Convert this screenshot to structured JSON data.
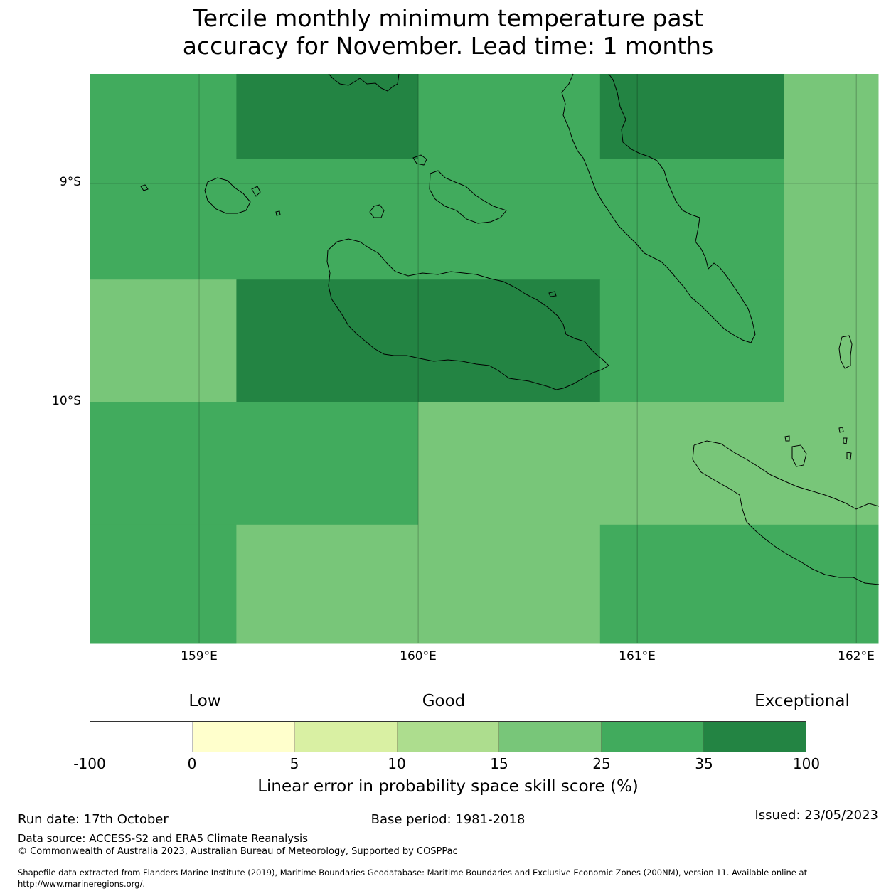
{
  "title": {
    "line1": "Tercile monthly minimum temperature past",
    "line2": "accuracy for November. Lead time: 1 months"
  },
  "map": {
    "lat_labels": [
      "9°S",
      "10°S"
    ],
    "lon_labels": [
      "159°E",
      "160°E",
      "161°E",
      "162°E"
    ],
    "extent": {
      "lon_min": 158.5,
      "lon_max": 162.1,
      "lat_top": -8.5,
      "lat_bottom": -11.1
    },
    "cell_rows": [
      {
        "lat_from": -8.5,
        "lat_to": -8.89,
        "cells": [
          [
            158.5,
            159.17,
            25
          ],
          [
            159.17,
            160.0,
            35
          ],
          [
            160.0,
            160.83,
            25
          ],
          [
            160.83,
            161.67,
            35
          ],
          [
            161.67,
            162.1,
            15
          ]
        ]
      },
      {
        "lat_from": -8.89,
        "lat_to": -9.44,
        "cells": [
          [
            158.5,
            161.67,
            25
          ],
          [
            161.67,
            162.1,
            15
          ]
        ]
      },
      {
        "lat_from": -9.44,
        "lat_to": -10.0,
        "cells": [
          [
            158.5,
            159.17,
            15
          ],
          [
            159.17,
            160.83,
            35
          ],
          [
            160.83,
            161.67,
            25
          ],
          [
            161.67,
            162.1,
            15
          ]
        ]
      },
      {
        "lat_from": -10.0,
        "lat_to": -10.56,
        "cells": [
          [
            158.5,
            160.0,
            25
          ],
          [
            160.0,
            162.1,
            15
          ]
        ]
      },
      {
        "lat_from": -10.56,
        "lat_to": -11.1,
        "cells": [
          [
            158.5,
            159.17,
            25
          ],
          [
            159.17,
            160.83,
            15
          ],
          [
            160.83,
            162.1,
            25
          ]
        ]
      }
    ]
  },
  "colorbar": {
    "words": [
      "Low",
      "Good",
      "Exceptional"
    ],
    "ticks": [
      "-100",
      "0",
      "5",
      "10",
      "15",
      "25",
      "35",
      "100"
    ],
    "colors": [
      "#ffffff",
      "#ffffcc",
      "#d9f0a3",
      "#addd8e",
      "#78c679",
      "#41ab5d",
      "#238443"
    ],
    "label": "Linear error in probability space skill score (%)"
  },
  "footer": {
    "run_date": "Run date: 17th October",
    "base_period": "Base period: 1981-2018",
    "issued": "Issued: 23/05/2023",
    "data_source": "Data source: ACCESS-S2 and ERA5 Climate Reanalysis",
    "copyright": "© Commonwealth of Australia 2023, Australian Bureau of Meteorology, Supported by COSPPac",
    "shapefile_line1": "Shapefile data extracted from Flanders Marine Institute (2019), Maritime Boundaries Geodatabase: Maritime Boundaries and Exclusive Economic Zones (200NM), version 11. Available online at",
    "shapefile_line2": "http://www.marineregions.org/."
  }
}
